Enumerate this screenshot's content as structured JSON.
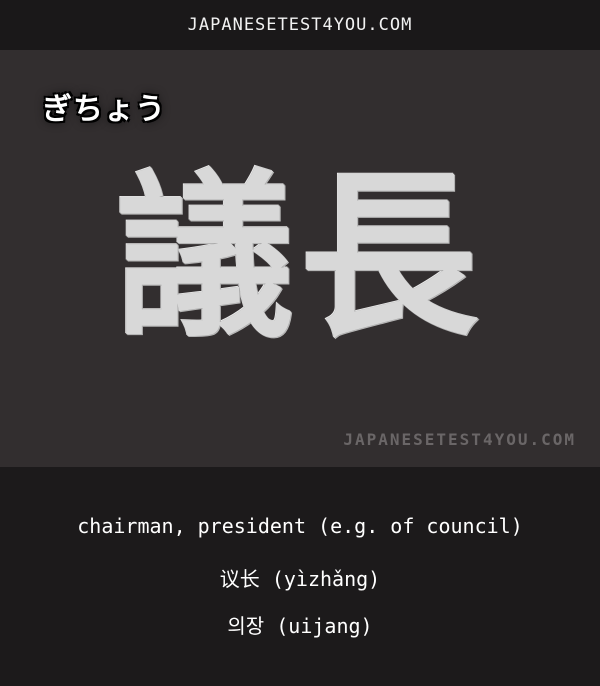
{
  "header": {
    "site": "JAPANESETEST4YOU.COM"
  },
  "card": {
    "reading": "ぎちょう",
    "kanji": "議長",
    "watermark": "JAPANESETEST4YOU.COM"
  },
  "meanings": {
    "english": "chairman, president (e.g. of council)",
    "chinese": "议长 (yìzhǎng)",
    "korean": "의장 (uijang)"
  }
}
